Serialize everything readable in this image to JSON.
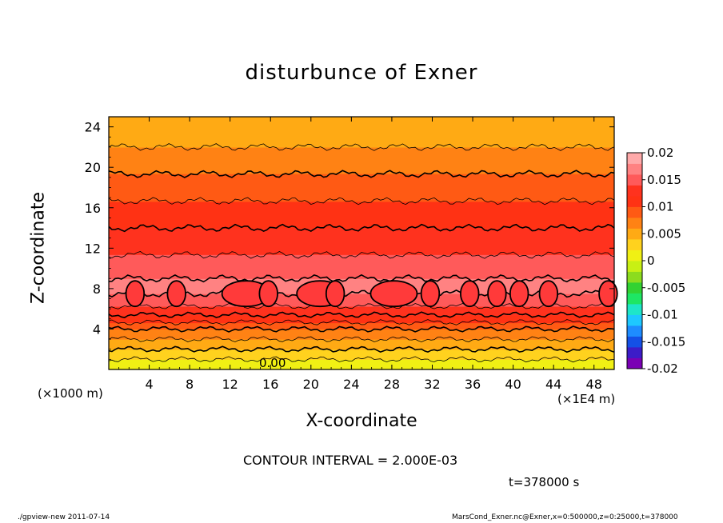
{
  "header": {
    "title": "disturbunce of Exner"
  },
  "chart_data": {
    "type": "heatmap",
    "title": "disturbunce of Exner",
    "xlabel": "X-coordinate",
    "ylabel": "Z-coordinate",
    "x_unit_left": "(×1000 m)",
    "x_unit_right": "(×1E4 m)",
    "xlim": [
      0,
      50
    ],
    "ylim": [
      0,
      25
    ],
    "x_ticks": [
      4,
      8,
      12,
      16,
      20,
      24,
      28,
      32,
      36,
      40,
      44,
      48
    ],
    "y_ticks": [
      4,
      8,
      12,
      16,
      20,
      24
    ],
    "colorbar_range": [
      -0.02,
      0.02
    ],
    "colorbar_ticks": [
      "0.02",
      "0.015",
      "0.01",
      "0.005",
      "0",
      "-0.005",
      "-0.01",
      "-0.015",
      "-0.02"
    ],
    "colorbar_values": [
      0.02,
      0.015,
      0.01,
      0.005,
      0,
      -0.005,
      -0.01,
      -0.015,
      -0.02
    ],
    "contour_interval": "CONTOUR INTERVAL = 2.000E-03",
    "contour_label": "0.00",
    "vertical_profile": {
      "z": [
        0,
        1,
        2,
        3,
        4,
        5,
        6,
        7,
        8,
        9,
        10,
        12,
        14,
        16,
        18,
        20,
        22,
        24,
        25
      ],
      "value": [
        0.0,
        0.002,
        0.004,
        0.006,
        0.008,
        0.011,
        0.0135,
        0.0155,
        0.0165,
        0.016,
        0.015,
        0.0135,
        0.012,
        0.0105,
        0.009,
        0.0075,
        0.006,
        0.0045,
        0.004
      ]
    },
    "max_contour_level": 0.016,
    "max_contour_cells_x": [
      2.6,
      6.7,
      12.0,
      15.8,
      19.3,
      22.4,
      26.6,
      31.8,
      35.7,
      38.4,
      40.6,
      43.5,
      49.4
    ],
    "time": "t=378000 s"
  },
  "footer": {
    "program": "./gpview-new   2011-07-14",
    "source": "MarsCond_Exner.nc@Exner,x=0:500000,z=0:25000,t=378000"
  },
  "colors": {
    "palette": [
      "#7a00b4",
      "#3c1cc8",
      "#1450e6",
      "#1e8cff",
      "#1ec8ff",
      "#1ee6c8",
      "#1ee664",
      "#32d232",
      "#8cdc1e",
      "#c8f014",
      "#f0f014",
      "#ffd21e",
      "#ffaa14",
      "#ff8214",
      "#ff5a14",
      "#ff3214",
      "#ff321e",
      "#ff5a5a",
      "#ff8282",
      "#ffaaaa"
    ]
  }
}
